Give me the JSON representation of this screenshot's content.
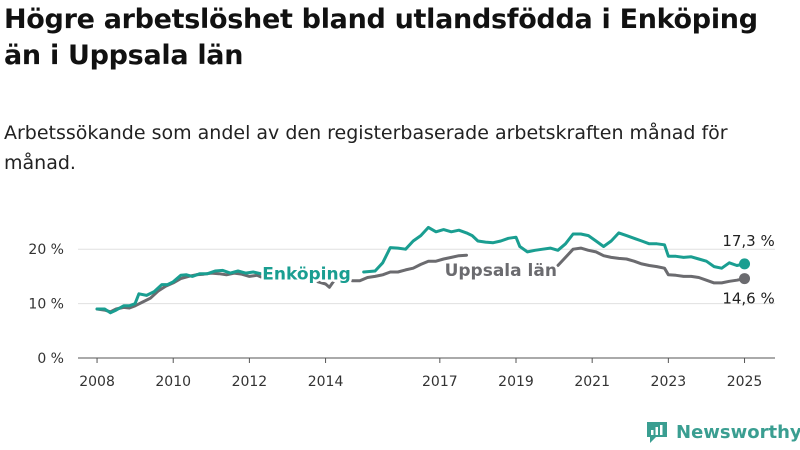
{
  "header": {
    "title": "Högre arbetslöshet bland utlandsfödda i Enköping än i Uppsala län",
    "subtitle": "Arbetssökande som andel av den registerbaserade arbetskraften månad för månad."
  },
  "logo": {
    "text": "Newsworthy",
    "icon": "newsworthy-chart-icon",
    "color": "#3a9e91"
  },
  "chart_data": {
    "type": "line",
    "title": "Högre arbetslöshet bland utlandsfödda i Enköping än i Uppsala län",
    "subtitle": "Arbetssökande som andel av den registerbaserade arbetskraften månad för månad.",
    "xlabel": "",
    "ylabel": "",
    "ylim": [
      0,
      25
    ],
    "xlim": [
      2007.5,
      2025.8
    ],
    "x_ticks": [
      {
        "value": 2008,
        "label": "2008"
      },
      {
        "value": 2010,
        "label": "2010"
      },
      {
        "value": 2012,
        "label": "2012"
      },
      {
        "value": 2014,
        "label": "2014"
      },
      {
        "value": 2017,
        "label": "2017"
      },
      {
        "value": 2019,
        "label": "2019"
      },
      {
        "value": 2021,
        "label": "2021"
      },
      {
        "value": 2023,
        "label": "2023"
      },
      {
        "value": 2025,
        "label": "2025"
      }
    ],
    "y_ticks": [
      {
        "value": 0,
        "label": "0 %"
      },
      {
        "value": 10,
        "label": "10 %"
      },
      {
        "value": 20,
        "label": "20 %"
      }
    ],
    "grid": "horizontal",
    "series": [
      {
        "name": "Enköping",
        "color": "#1a9e91",
        "end_label": "17,3 %",
        "segments": [
          [
            [
              2008.0,
              9.0
            ],
            [
              2008.2,
              9.0
            ],
            [
              2008.35,
              8.3
            ],
            [
              2008.5,
              8.8
            ],
            [
              2008.7,
              9.6
            ],
            [
              2008.85,
              9.6
            ],
            [
              2009.0,
              10.0
            ],
            [
              2009.1,
              11.8
            ],
            [
              2009.3,
              11.5
            ],
            [
              2009.5,
              12.2
            ],
            [
              2009.7,
              13.5
            ],
            [
              2009.85,
              13.5
            ],
            [
              2010.0,
              14.0
            ],
            [
              2010.2,
              15.2
            ],
            [
              2010.35,
              15.3
            ],
            [
              2010.5,
              15.0
            ],
            [
              2010.7,
              15.5
            ],
            [
              2010.9,
              15.5
            ],
            [
              2011.1,
              16.0
            ],
            [
              2011.3,
              16.1
            ],
            [
              2011.5,
              15.6
            ],
            [
              2011.7,
              16.0
            ],
            [
              2011.9,
              15.6
            ],
            [
              2012.1,
              15.8
            ],
            [
              2012.3,
              15.5
            ]
          ],
          [
            [
              2015.0,
              15.8
            ],
            [
              2015.3,
              16.0
            ],
            [
              2015.5,
              17.5
            ],
            [
              2015.7,
              20.3
            ],
            [
              2015.9,
              20.2
            ],
            [
              2016.1,
              20.0
            ],
            [
              2016.3,
              21.5
            ],
            [
              2016.5,
              22.5
            ],
            [
              2016.7,
              24.0
            ],
            [
              2016.9,
              23.2
            ],
            [
              2017.1,
              23.6
            ],
            [
              2017.3,
              23.2
            ],
            [
              2017.5,
              23.5
            ],
            [
              2017.7,
              23.0
            ],
            [
              2017.85,
              22.5
            ],
            [
              2018.0,
              21.5
            ],
            [
              2018.2,
              21.3
            ],
            [
              2018.4,
              21.2
            ],
            [
              2018.6,
              21.5
            ],
            [
              2018.8,
              22.0
            ],
            [
              2019.0,
              22.2
            ],
            [
              2019.1,
              20.5
            ],
            [
              2019.3,
              19.5
            ],
            [
              2019.5,
              19.8
            ],
            [
              2019.7,
              20.0
            ],
            [
              2019.9,
              20.2
            ],
            [
              2020.1,
              19.8
            ],
            [
              2020.3,
              21.0
            ],
            [
              2020.5,
              22.8
            ],
            [
              2020.7,
              22.8
            ],
            [
              2020.9,
              22.5
            ],
            [
              2021.1,
              21.5
            ],
            [
              2021.3,
              20.5
            ],
            [
              2021.5,
              21.5
            ],
            [
              2021.7,
              23.0
            ],
            [
              2021.9,
              22.5
            ],
            [
              2022.1,
              22.0
            ],
            [
              2022.3,
              21.5
            ],
            [
              2022.5,
              21.0
            ],
            [
              2022.7,
              21.0
            ],
            [
              2022.9,
              20.8
            ],
            [
              2023.0,
              18.7
            ],
            [
              2023.2,
              18.7
            ],
            [
              2023.4,
              18.5
            ],
            [
              2023.6,
              18.6
            ],
            [
              2023.8,
              18.2
            ],
            [
              2024.0,
              17.8
            ],
            [
              2024.2,
              16.8
            ],
            [
              2024.4,
              16.5
            ],
            [
              2024.6,
              17.5
            ],
            [
              2024.8,
              17.0
            ],
            [
              2025.0,
              17.3
            ]
          ]
        ]
      },
      {
        "name": "Uppsala län",
        "color": "#6b6b6f",
        "end_label": "14,6 %",
        "segments": [
          [
            [
              2008.0,
              9.0
            ],
            [
              2008.2,
              8.8
            ],
            [
              2008.35,
              8.5
            ],
            [
              2008.5,
              9.0
            ],
            [
              2008.7,
              9.3
            ],
            [
              2008.85,
              9.2
            ],
            [
              2009.0,
              9.6
            ],
            [
              2009.2,
              10.3
            ],
            [
              2009.4,
              11.0
            ],
            [
              2009.6,
              12.3
            ],
            [
              2009.8,
              13.2
            ],
            [
              2010.0,
              13.8
            ],
            [
              2010.2,
              14.6
            ],
            [
              2010.4,
              15.0
            ],
            [
              2010.6,
              15.3
            ],
            [
              2010.8,
              15.4
            ],
            [
              2011.0,
              15.6
            ],
            [
              2011.2,
              15.5
            ],
            [
              2011.4,
              15.3
            ],
            [
              2011.6,
              15.6
            ],
            [
              2011.8,
              15.4
            ],
            [
              2012.0,
              15.0
            ],
            [
              2012.2,
              15.2
            ],
            [
              2012.3,
              14.9
            ]
          ],
          [
            [
              2013.8,
              14.0
            ],
            [
              2014.0,
              13.6
            ],
            [
              2014.1,
              13.0
            ],
            [
              2014.25,
              14.5
            ]
          ],
          [
            [
              2014.7,
              14.2
            ],
            [
              2014.9,
              14.2
            ],
            [
              2015.1,
              14.8
            ],
            [
              2015.3,
              15.0
            ],
            [
              2015.5,
              15.3
            ],
            [
              2015.7,
              15.8
            ],
            [
              2015.9,
              15.8
            ],
            [
              2016.1,
              16.2
            ],
            [
              2016.3,
              16.5
            ],
            [
              2016.5,
              17.2
            ],
            [
              2016.7,
              17.8
            ],
            [
              2016.9,
              17.8
            ],
            [
              2017.1,
              18.2
            ],
            [
              2017.3,
              18.5
            ],
            [
              2017.5,
              18.8
            ],
            [
              2017.7,
              18.9
            ]
          ],
          [
            [
              2020.1,
              17.0
            ],
            [
              2020.3,
              18.5
            ],
            [
              2020.5,
              20.0
            ],
            [
              2020.7,
              20.2
            ],
            [
              2020.9,
              19.8
            ],
            [
              2021.1,
              19.5
            ],
            [
              2021.3,
              18.8
            ],
            [
              2021.5,
              18.5
            ],
            [
              2021.7,
              18.3
            ],
            [
              2021.9,
              18.2
            ],
            [
              2022.1,
              17.8
            ],
            [
              2022.3,
              17.3
            ],
            [
              2022.5,
              17.0
            ],
            [
              2022.7,
              16.8
            ],
            [
              2022.9,
              16.5
            ],
            [
              2023.0,
              15.3
            ],
            [
              2023.2,
              15.2
            ],
            [
              2023.4,
              15.0
            ],
            [
              2023.6,
              15.0
            ],
            [
              2023.8,
              14.8
            ],
            [
              2024.0,
              14.3
            ],
            [
              2024.2,
              13.8
            ],
            [
              2024.4,
              13.8
            ],
            [
              2024.6,
              14.1
            ],
            [
              2024.8,
              14.3
            ],
            [
              2025.0,
              14.6
            ]
          ]
        ]
      }
    ],
    "labels": [
      {
        "text": "Enköping",
        "series": "Enköping",
        "x": 2013.5,
        "y": 15.5,
        "anchor": "middle"
      },
      {
        "text": "Uppsala län",
        "series": "Uppsala län",
        "x": 2018.6,
        "y": 16.2,
        "anchor": "middle"
      }
    ]
  }
}
